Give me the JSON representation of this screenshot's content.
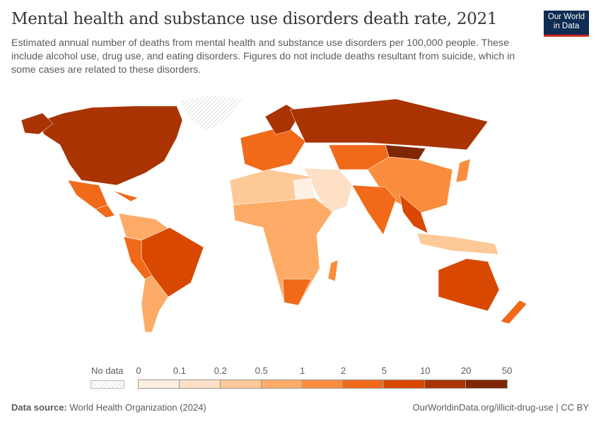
{
  "header": {
    "title": "Mental health and substance use disorders death rate, 2021",
    "subtitle": "Estimated annual number of deaths from mental health and substance use disorders per 100,000 people. These include alcohol use, drug use, and eating disorders. Figures do not include deaths resultant from suicide, which in some cases are related to these disorders.",
    "logo_line1": "Our World",
    "logo_line2": "in Data"
  },
  "legend": {
    "no_data_label": "No data",
    "ticks": [
      "0",
      "0.1",
      "0.2",
      "0.5",
      "1",
      "2",
      "5",
      "10",
      "20",
      "50"
    ],
    "colors": [
      "#fef0e3",
      "#fde0c5",
      "#fdc997",
      "#fdab67",
      "#f98d3d",
      "#f06a1a",
      "#d84800",
      "#a93302",
      "#7f2704"
    ],
    "no_data_color": "hatched-grey"
  },
  "footer": {
    "source_label": "Data source:",
    "source": "World Health Organization (2024)",
    "link": "OurWorldinData.org/illicit-drug-use | CC BY"
  }
}
